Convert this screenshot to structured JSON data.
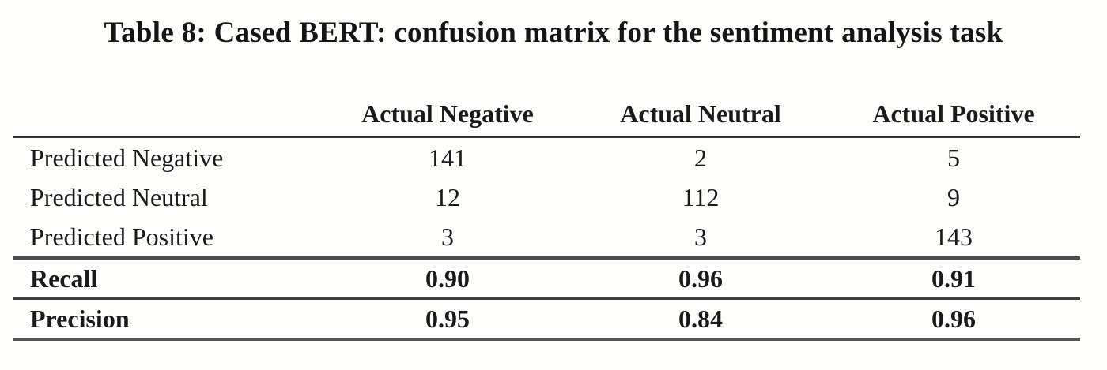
{
  "title": "Table 8: Cased BERT: confusion matrix for the sentiment analysis task",
  "table": {
    "corner_label": "",
    "col_headers": [
      "Actual Negative",
      "Actual Neutral",
      "Actual Positive"
    ],
    "rows": [
      {
        "label": "Predicted Negative",
        "values": [
          "141",
          "2",
          "5"
        ]
      },
      {
        "label": "Predicted Neutral",
        "values": [
          "12",
          "112",
          "9"
        ]
      },
      {
        "label": "Predicted Positive",
        "values": [
          "3",
          "3",
          "143"
        ]
      }
    ],
    "summary_rows": [
      {
        "label": "Recall",
        "values": [
          "0.90",
          "0.96",
          "0.91"
        ]
      },
      {
        "label": "Precision",
        "values": [
          "0.95",
          "0.84",
          "0.96"
        ]
      }
    ]
  },
  "colors": {
    "text": "#1a1a1a",
    "rule": "#4c4c4c",
    "background": "#fdfdfc"
  },
  "chart_data": {
    "type": "table",
    "title": "Table 8: Cased BERT: confusion matrix for the sentiment analysis task",
    "columns": [
      "",
      "Actual Negative",
      "Actual Neutral",
      "Actual Positive"
    ],
    "rows": [
      [
        "Predicted Negative",
        141,
        2,
        5
      ],
      [
        "Predicted Neutral",
        12,
        112,
        9
      ],
      [
        "Predicted Positive",
        3,
        3,
        143
      ],
      [
        "Recall",
        0.9,
        0.96,
        0.91
      ],
      [
        "Precision",
        0.95,
        0.84,
        0.96
      ]
    ]
  }
}
